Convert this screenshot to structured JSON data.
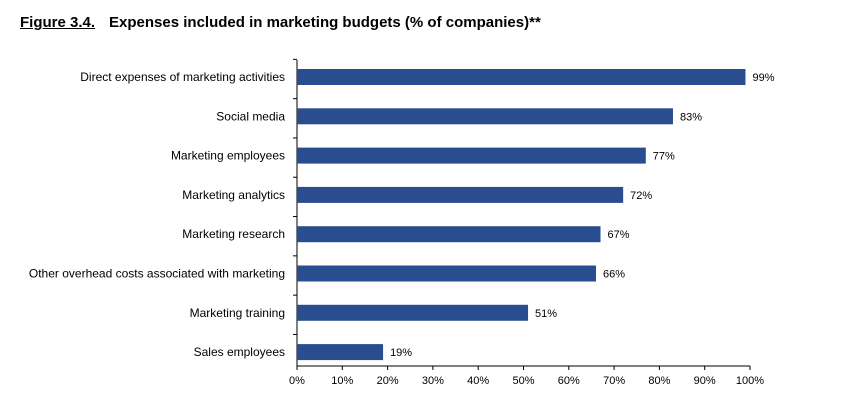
{
  "chart_data": {
    "type": "bar",
    "orientation": "horizontal",
    "figure_label": "Figure 3.4.",
    "title": "Expenses included in marketing budgets (% of companies)**",
    "categories": [
      "Direct expenses of marketing activities",
      "Social media",
      "Marketing employees",
      "Marketing analytics",
      "Marketing research",
      "Other overhead costs associated with marketing",
      "Marketing training",
      "Sales employees"
    ],
    "values": [
      99,
      83,
      77,
      72,
      67,
      66,
      51,
      19
    ],
    "value_labels": [
      "99%",
      "83%",
      "77%",
      "72%",
      "67%",
      "66%",
      "51%",
      "19%"
    ],
    "xlim": [
      0,
      100
    ],
    "x_ticks": [
      0,
      10,
      20,
      30,
      40,
      50,
      60,
      70,
      80,
      90,
      100
    ],
    "x_tick_labels": [
      "0%",
      "10%",
      "20%",
      "30%",
      "40%",
      "50%",
      "60%",
      "70%",
      "80%",
      "90%",
      "100%"
    ],
    "bar_color": "#2a4d8f",
    "grid": false,
    "legend": "none"
  }
}
